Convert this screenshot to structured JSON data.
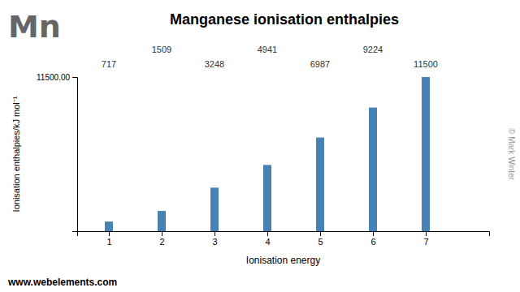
{
  "chart_data": {
    "type": "bar",
    "title": "Manganese ionisation enthalpies",
    "x_label": "Ionisation energy",
    "y_label": "Ionisation enthalpies/kJ mol⁻¹",
    "x": [
      1,
      2,
      3,
      4,
      5,
      6,
      7
    ],
    "values": [
      717,
      1509,
      3248,
      4941,
      6987,
      9224,
      11500
    ],
    "xlim": [
      0.4,
      8.2
    ],
    "xticks": [
      1,
      2,
      3,
      4,
      5,
      6,
      7
    ],
    "ylim": [
      0,
      11500
    ],
    "yticks": [
      {
        "value": 11500,
        "label": "11500.00"
      }
    ],
    "grid": false,
    "data_labels": true,
    "annotations": [
      "Mn",
      "www.webelements.com",
      "© Mark Winter"
    ]
  }
}
